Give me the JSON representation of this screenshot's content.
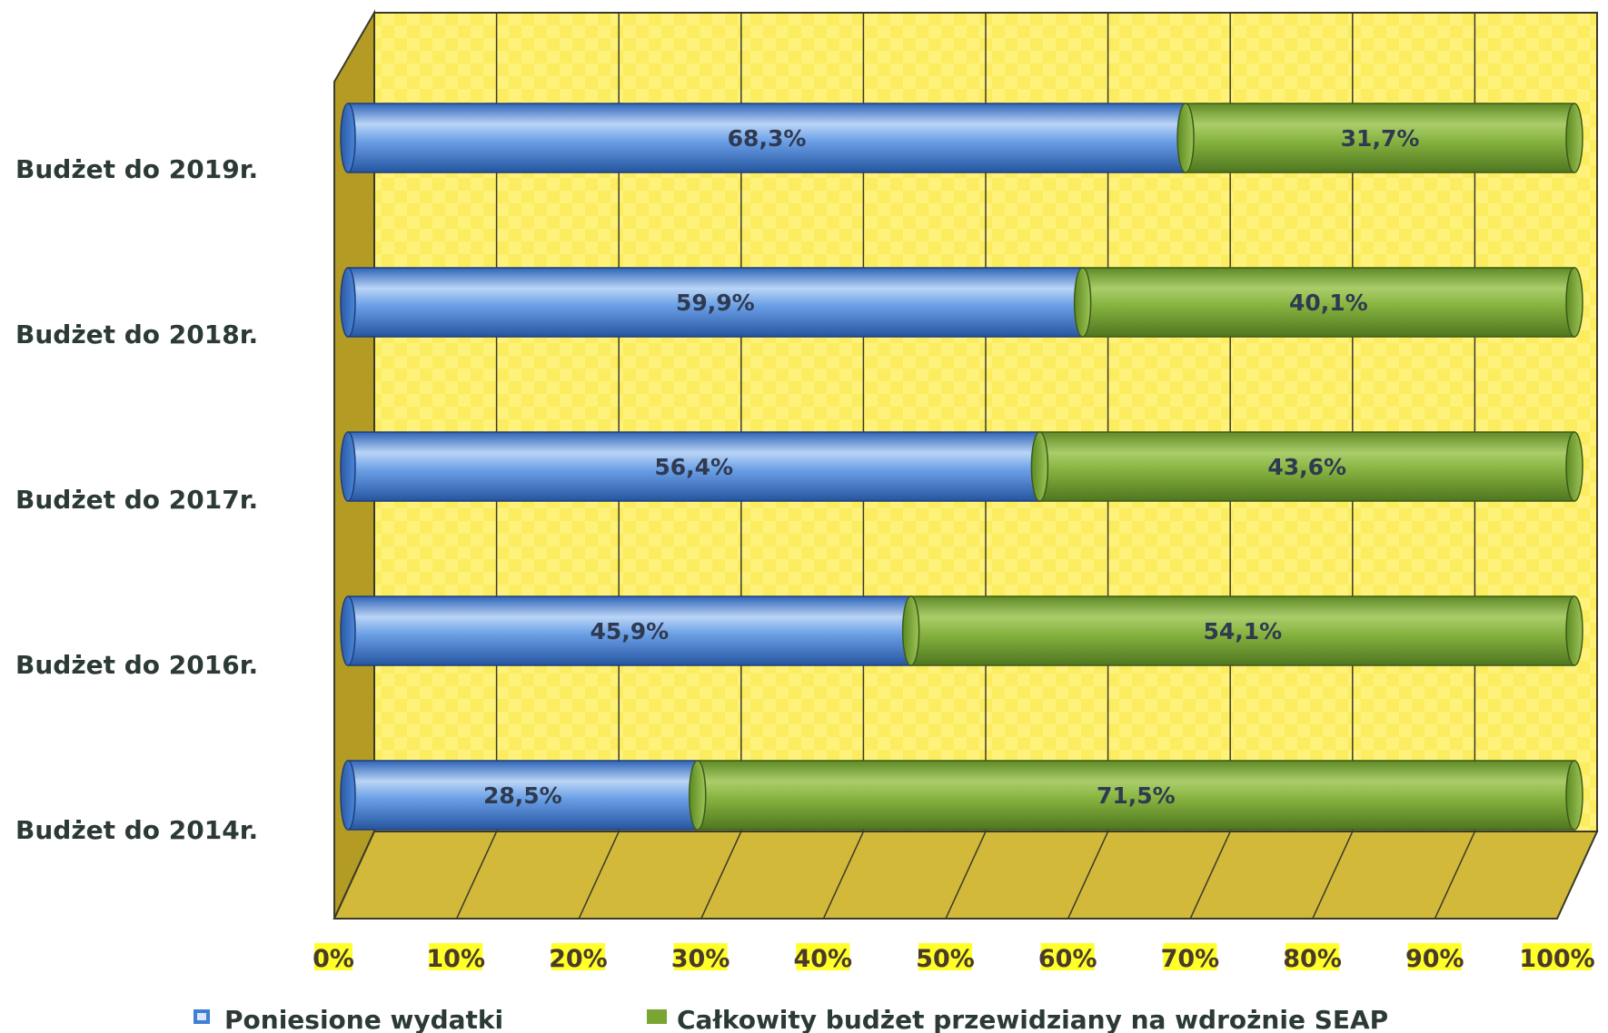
{
  "chart_data": {
    "type": "bar",
    "orientation": "horizontal",
    "stacked": true,
    "percent_stacked": true,
    "style_3d": true,
    "categories": [
      "Budżet do 2019r.",
      "Budżet do 2018r.",
      "Budżet do 2017r.",
      "Budżet do 2016r.",
      "Budżet do 2014r."
    ],
    "series": [
      {
        "name": "Poniesione wydatki",
        "color": "#3f7fd6",
        "values": [
          68.3,
          59.9,
          56.4,
          45.9,
          28.5
        ],
        "labels": [
          "68,3%",
          "59,9%",
          "56,4%",
          "45,9%",
          "28,5%"
        ]
      },
      {
        "name": "Całkowity budżet przewidziany na wdrożnie SEAP",
        "color": "#7aa532",
        "values": [
          31.7,
          40.1,
          43.6,
          54.1,
          71.5
        ],
        "labels": [
          "31,7%",
          "40,1%",
          "43,6%",
          "54,1%",
          "71,5%"
        ]
      }
    ],
    "x_ticks": [
      "0%",
      "10%",
      "20%",
      "30%",
      "40%",
      "50%",
      "60%",
      "70%",
      "80%",
      "90%",
      "100%"
    ],
    "xlim": [
      0,
      100
    ],
    "grid": true,
    "legend_position": "bottom",
    "colors": {
      "wall": "#fff27a",
      "wall_grid_pattern": "#f2dc3a",
      "floor": "#d2b93a",
      "side_wall": "#b49b23",
      "tick_highlight": "#ffff2a"
    }
  }
}
